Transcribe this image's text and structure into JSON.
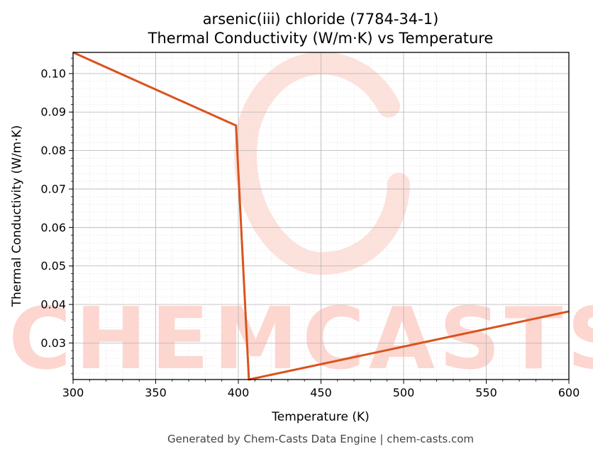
{
  "chart_data": {
    "type": "line",
    "title": "arsenic(iii) chloride (7784-34-1)",
    "subtitle": "Thermal Conductivity (W/m·K) vs Temperature",
    "xlabel": "Temperature (K)",
    "ylabel": "Thermal Conductivity (W/m·K)",
    "xlim": [
      300,
      600
    ],
    "ylim": [
      0.0205,
      0.1055
    ],
    "xticks": [
      300,
      350,
      400,
      450,
      500,
      550,
      600
    ],
    "yticks": [
      0.03,
      0.04,
      0.05,
      0.06,
      0.07,
      0.08,
      0.09,
      0.1
    ],
    "ytick_labels": [
      "0.03",
      "0.04",
      "0.05",
      "0.06",
      "0.07",
      "0.08",
      "0.09",
      "0.10"
    ],
    "grid": true,
    "series": [
      {
        "color": "#d9531e",
        "x": [
          300,
          398.6,
          406.4,
          600
        ],
        "y": [
          0.1055,
          0.0865,
          0.0205,
          0.0382
        ]
      }
    ]
  },
  "watermark": {
    "text": "CHEMCASTS",
    "color": "#fdd6cf"
  },
  "footer": "Generated by Chem-Casts Data Engine | chem-casts.com"
}
